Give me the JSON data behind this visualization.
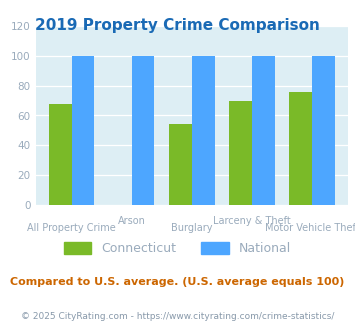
{
  "title": "2019 Property Crime Comparison",
  "categories": [
    "All Property Crime",
    "Arson",
    "Burglary",
    "Larceny & Theft",
    "Motor Vehicle Theft"
  ],
  "connecticut_values": [
    68,
    null,
    54,
    70,
    76
  ],
  "national_values": [
    100,
    100,
    100,
    100,
    100
  ],
  "ct_color": "#7aba28",
  "nat_color": "#4da6ff",
  "bg_color": "#ddeef4",
  "ylim": [
    0,
    120
  ],
  "yticks": [
    0,
    20,
    40,
    60,
    80,
    100,
    120
  ],
  "legend_ct": "Connecticut",
  "legend_nat": "National",
  "note": "Compared to U.S. average. (U.S. average equals 100)",
  "footer": "© 2025 CityRating.com - https://www.cityrating.com/crime-statistics/",
  "title_color": "#1a6ab5",
  "tick_color": "#9aabbc",
  "xlabel_color": "#9aabbc",
  "note_color": "#cc6600",
  "footer_color": "#8899aa",
  "bar_width": 0.38
}
